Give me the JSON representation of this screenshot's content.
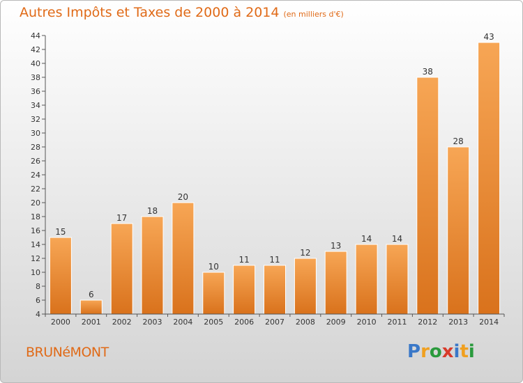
{
  "chart_data": {
    "type": "bar",
    "title": "Autres Impôts et Taxes de 2000 à 2014",
    "subtitle": "(en milliers d'€)",
    "xlabel": "",
    "ylabel": "",
    "categories": [
      "2000",
      "2001",
      "2002",
      "2003",
      "2004",
      "2005",
      "2006",
      "2007",
      "2008",
      "2009",
      "2010",
      "2011",
      "2012",
      "2013",
      "2014"
    ],
    "values": [
      15,
      6,
      17,
      18,
      20,
      10,
      11,
      11,
      12,
      13,
      14,
      14,
      38,
      28,
      43
    ],
    "ylim": [
      4,
      44
    ],
    "yticks": [
      4,
      6,
      8,
      10,
      12,
      14,
      16,
      18,
      20,
      22,
      24,
      26,
      28,
      30,
      32,
      34,
      36,
      38,
      40,
      42,
      44
    ],
    "grid": false,
    "bar_color": "#ec8a30"
  },
  "footer": {
    "commune": "BRUNéMONT",
    "brand": [
      "P",
      "r",
      "o",
      "x",
      "i",
      "t",
      "i"
    ]
  },
  "colors": {
    "accent": "#e06a17",
    "brand": [
      "#3a78c8",
      "#f0a020",
      "#2a9a3c",
      "#d83a2a",
      "#3a78c8",
      "#f0a020",
      "#2a9a3c"
    ]
  }
}
